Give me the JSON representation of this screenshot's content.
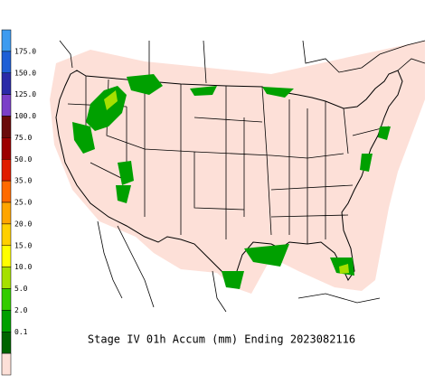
{
  "title": "Stage IV 01h Accum (mm) Ending 2023082116",
  "legend": {
    "labels": [
      "175.0",
      "150.0",
      "125.0",
      "100.0",
      "75.0",
      "50.0",
      "35.0",
      "25.0",
      "20.0",
      "15.0",
      "10.0",
      "5.0",
      "2.0",
      "0.1"
    ],
    "colors": [
      "#3d9bf0",
      "#1f5fd6",
      "#2a2aa8",
      "#7b3fc8",
      "#6a0a0a",
      "#9c0000",
      "#e01c00",
      "#ff6a00",
      "#ffa500",
      "#ffd000",
      "#ffff00",
      "#a6e000",
      "#33cc00",
      "#00a000",
      "#006400",
      "#fde0d8"
    ]
  }
}
